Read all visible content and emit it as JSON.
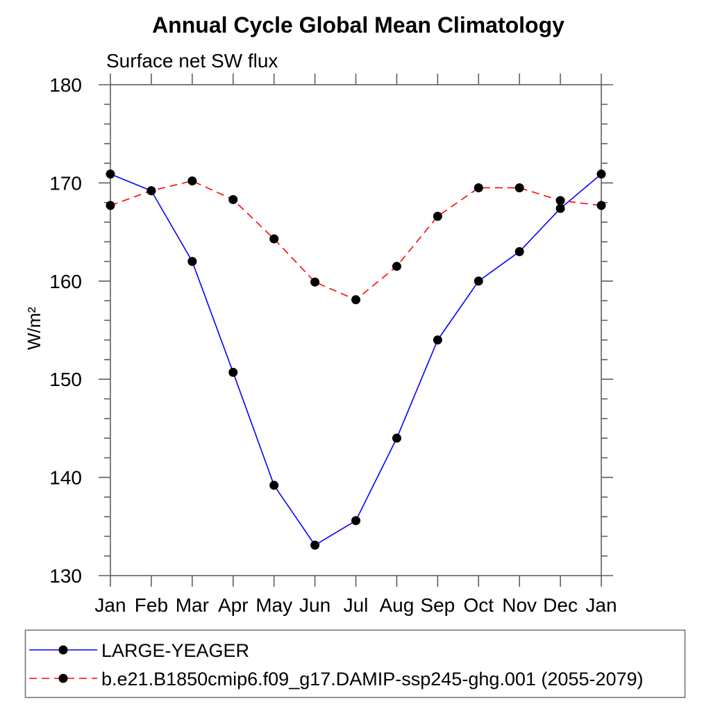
{
  "chart_data": {
    "type": "line",
    "title": "Annual Cycle Global Mean Climatology",
    "subtitle": "Surface net SW flux",
    "ylabel": "W/m²",
    "xlabel": "",
    "categories": [
      "Jan",
      "Feb",
      "Mar",
      "Apr",
      "May",
      "Jun",
      "Jul",
      "Aug",
      "Sep",
      "Oct",
      "Nov",
      "Dec",
      "Jan"
    ],
    "ylim": [
      130,
      180
    ],
    "ytick_major": 10,
    "ytick_minor": 2,
    "grid": false,
    "legend_position": "bottom",
    "marker_color": "#000000",
    "series": [
      {
        "name": "LARGE-YEAGER",
        "color": "#0000ff",
        "style": "solid",
        "marker": "filled-circle",
        "values": [
          170.9,
          169.2,
          162.0,
          150.7,
          139.2,
          133.1,
          135.6,
          144.0,
          154.0,
          160.0,
          163.0,
          167.4,
          170.9
        ]
      },
      {
        "name": "b.e21.B1850cmip6.f09_g17.DAMIP-ssp245-ghg.001 (2055-2079)",
        "color": "#ff0000",
        "style": "dashed",
        "marker": "filled-circle",
        "values": [
          167.7,
          169.2,
          170.2,
          168.3,
          164.3,
          159.9,
          158.1,
          161.5,
          166.6,
          169.5,
          169.5,
          168.2,
          167.7
        ]
      }
    ]
  }
}
